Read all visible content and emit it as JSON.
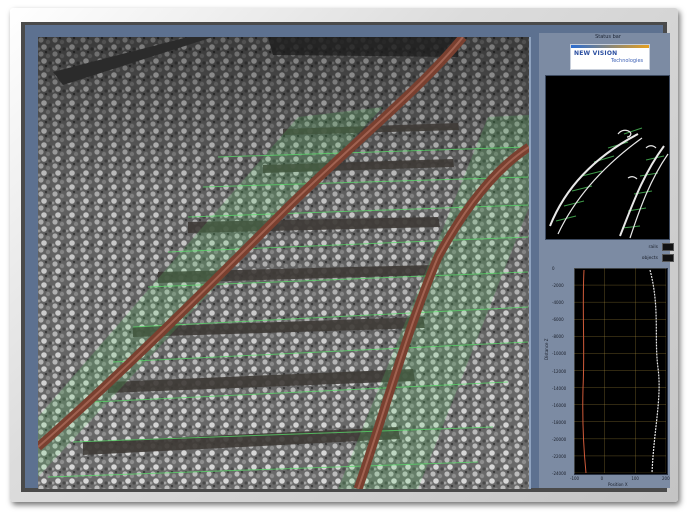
{
  "window": {
    "frame_color": "#d0d0d0",
    "panel_color": "#5d7190",
    "sidebar_color": "#7c8ba3"
  },
  "camera_view": {
    "overlay_color": "#5adc6a",
    "rail_color": "#8a4a3a"
  },
  "sidebar": {
    "title": "Status bar",
    "logo": {
      "line1": "NEW VISION",
      "line2": "Technologies"
    },
    "bev_view": {
      "track_color": "#e8e8e8",
      "marker_color": "#5adc6a"
    },
    "legend": [
      {
        "label": "rails",
        "color": "#111111"
      },
      {
        "label": "objects",
        "color": "#111111"
      }
    ],
    "profile_plot": {
      "y_ticks": [
        "0",
        "-2000",
        "-4000",
        "-6000",
        "-8000",
        "-10000",
        "-12000",
        "-14000",
        "-16000",
        "-18000",
        "-20000",
        "-22000",
        "-24000"
      ],
      "x_ticks": [
        "-100",
        "0",
        "100",
        "200"
      ],
      "x_label": "Position X",
      "y_label": "Distance Z",
      "grid_color": "#c9a94a",
      "left_curve_color": "#d05a3a",
      "right_curve_color": "#e8e8e8"
    }
  }
}
